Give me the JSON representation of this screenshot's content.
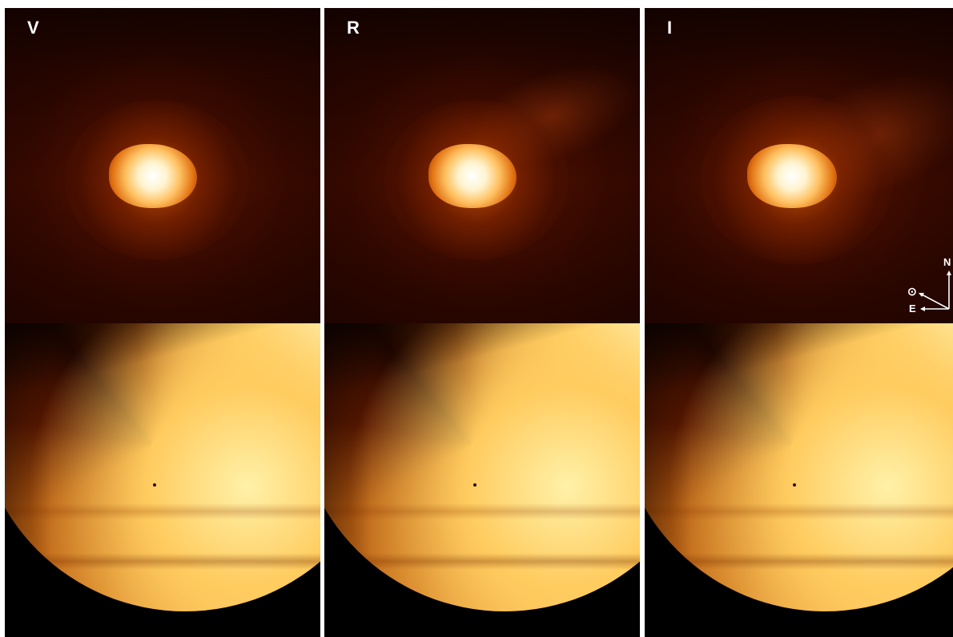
{
  "panels": {
    "v": {
      "label": "V"
    },
    "r": {
      "label": "R"
    },
    "i": {
      "label": "I"
    }
  },
  "compass": {
    "north": "N",
    "east": "E",
    "sun": "⊙"
  },
  "colors": {
    "background_dark": "#000000",
    "coma_core": "#ffffff",
    "coma_mid": "#e07010",
    "disc_bright": "#ffd77a",
    "divider": "#ffffff"
  }
}
